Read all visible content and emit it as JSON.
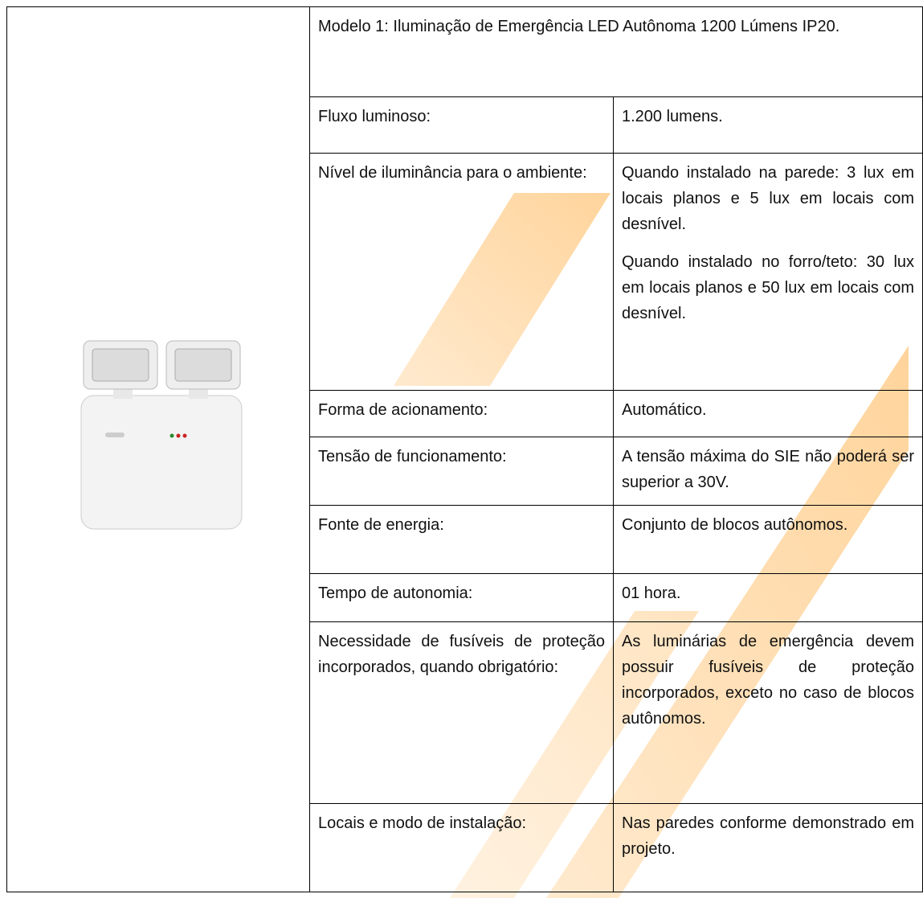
{
  "table": {
    "title": "Modelo 1: Iluminação de Emergência LED Autônoma 1200 Lúmens IP20.",
    "rows": [
      {
        "label": "Fluxo luminoso:",
        "paragraphs": [
          "1.200 lumens."
        ]
      },
      {
        "label": "Nível de iluminância para o ambiente:",
        "paragraphs": [
          "Quando instalado na parede: 3 lux em locais planos e 5 lux em locais com desnível.",
          "Quando instalado no forro/teto: 30 lux em locais planos e 50 lux em locais com desnível."
        ]
      },
      {
        "label": "Forma de acionamento:",
        "paragraphs": [
          "Automático."
        ]
      },
      {
        "label": "Tensão de funcionamento:",
        "paragraphs": [
          "A tensão máxima do SIE não poderá ser superior a 30V."
        ]
      },
      {
        "label": "Fonte de energia:",
        "paragraphs": [
          "Conjunto de blocos autônomos."
        ]
      },
      {
        "label": "Tempo de autonomia:",
        "paragraphs": [
          "01 hora."
        ]
      },
      {
        "label": "Necessidade de fusíveis de proteção incorporados, quando obrigatório:",
        "paragraphs": [
          "As luminárias de emergência devem possuir fusíveis de proteção incorporados, exceto no caso de blocos autônomos."
        ]
      },
      {
        "label": "Locais e modo de instalação:",
        "paragraphs": [
          "Nas paredes conforme demonstrado em projeto."
        ]
      }
    ]
  }
}
